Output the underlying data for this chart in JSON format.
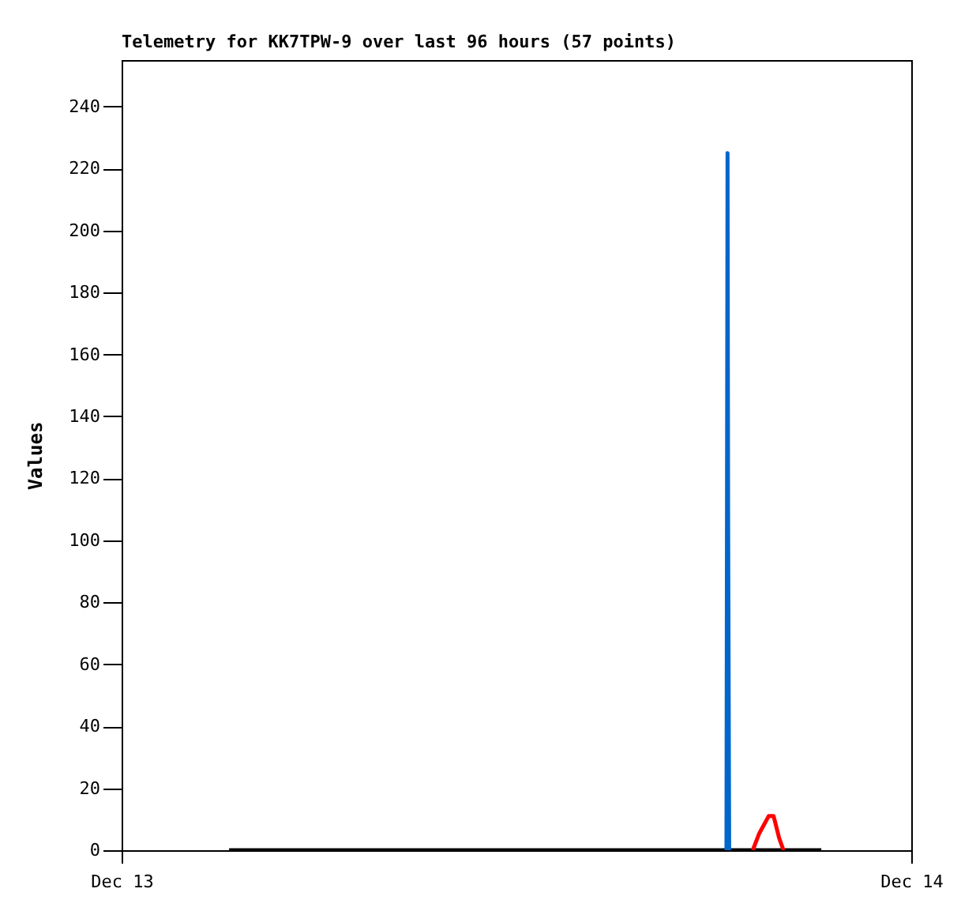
{
  "chart_data": {
    "type": "line",
    "title": "Telemetry for KK7TPW-9 over last 96 hours (57 points)",
    "ylabel": "Values",
    "xlim": [
      "--12-13",
      "--12-14"
    ],
    "xticks": [
      {
        "value": "--12-13",
        "label": "Dec 13"
      },
      {
        "value": "--12-14",
        "label": "Dec 14"
      }
    ],
    "ylim": [
      0,
      255
    ],
    "yticks": [
      0,
      20,
      40,
      60,
      80,
      100,
      120,
      140,
      160,
      180,
      200,
      220,
      240
    ],
    "grid": false,
    "series": [
      {
        "color": "#000000",
        "x": [
          "--12-13T03:16",
          "--12-13T21:16"
        ],
        "values": [
          0,
          0
        ]
      },
      {
        "color": "#0066cc",
        "x": [
          "--12-13T18:23",
          "--12-13T18:25",
          "--12-13T18:26",
          "--12-13T18:28"
        ],
        "values": [
          0,
          225,
          112,
          0
        ]
      },
      {
        "color": "#ff0000",
        "x": [
          "--12-13T19:11",
          "--12-13T19:23",
          "--12-13T19:40",
          "--12-13T19:49",
          "--12-13T19:59",
          "--12-13T20:07"
        ],
        "values": [
          0,
          5.5,
          11,
          11,
          4,
          0
        ]
      }
    ]
  }
}
